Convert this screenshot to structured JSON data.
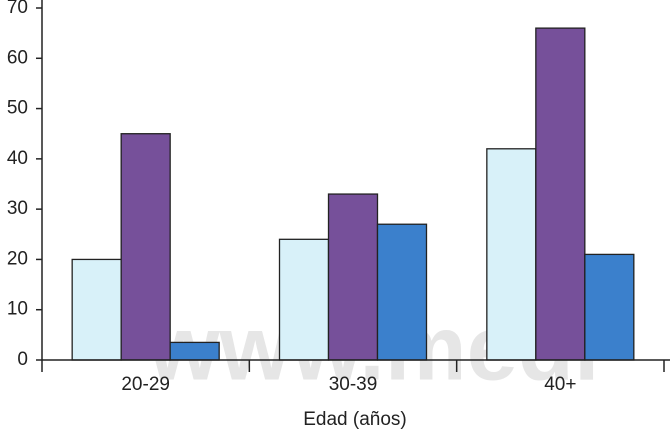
{
  "chart_data": {
    "type": "bar",
    "x_label": "Edad (años)",
    "watermark": "www.medi",
    "categories": [
      "20-29",
      "30-39",
      "40+"
    ],
    "series": [
      {
        "color": "#d8f1f9",
        "values": [
          20,
          24,
          42
        ]
      },
      {
        "color": "#76509a",
        "values": [
          45,
          33,
          66
        ]
      },
      {
        "color": "#3b80cc",
        "values": [
          3.5,
          27,
          21
        ]
      }
    ],
    "ylim": [
      0,
      70
    ],
    "yticks": [
      0,
      10,
      20,
      30,
      40,
      50,
      60,
      70
    ],
    "grid": false
  }
}
